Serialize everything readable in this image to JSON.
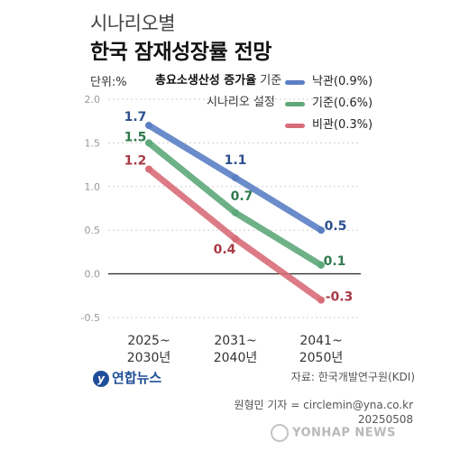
{
  "header": {
    "subtitle": "시나리오별",
    "title": "한국 잠재성장률 전망"
  },
  "unit_label": "단위:%",
  "note": {
    "bold": "총요소생산성 증가율",
    "rest": " 기준",
    "line2": "시나리오 설정"
  },
  "colors": {
    "optimistic": "#5b7fc4",
    "baseline": "#5ea97a",
    "pessimistic": "#d86d78",
    "zero_line": "#333333",
    "grid": "#cfcfcf"
  },
  "chart_data": {
    "type": "line",
    "categories": [
      "2025~\n2030년",
      "2031~\n2040년",
      "2041~\n2050년"
    ],
    "y_ticks": [
      "2.0",
      "1.5",
      "1.0",
      "0.5",
      "0.0",
      "-0.5"
    ],
    "ylim": [
      -0.5,
      2.0
    ],
    "grid": true,
    "legend_position": "top-right",
    "series": [
      {
        "name": "낙관(0.9%)",
        "key": "optimistic",
        "values": [
          1.7,
          1.1,
          0.5
        ],
        "labels": [
          "1.7",
          "1.1",
          "0.5"
        ]
      },
      {
        "name": "기준(0.6%)",
        "key": "baseline",
        "values": [
          1.5,
          0.7,
          0.1
        ],
        "labels": [
          "1.5",
          "0.7",
          "0.1"
        ]
      },
      {
        "name": "비관(0.3%)",
        "key": "pessimistic",
        "values": [
          1.2,
          0.4,
          -0.3
        ],
        "labels": [
          "1.2",
          "0.4",
          "-0.3"
        ]
      }
    ]
  },
  "footer": {
    "logo": "연합뉴스",
    "source": "자료: 한국개발연구원(KDI)",
    "credit_line1": "원형민 기자 = circlemin@yna.co.kr",
    "credit_line2": "20250508",
    "watermark": "YONHAP NEWS"
  }
}
